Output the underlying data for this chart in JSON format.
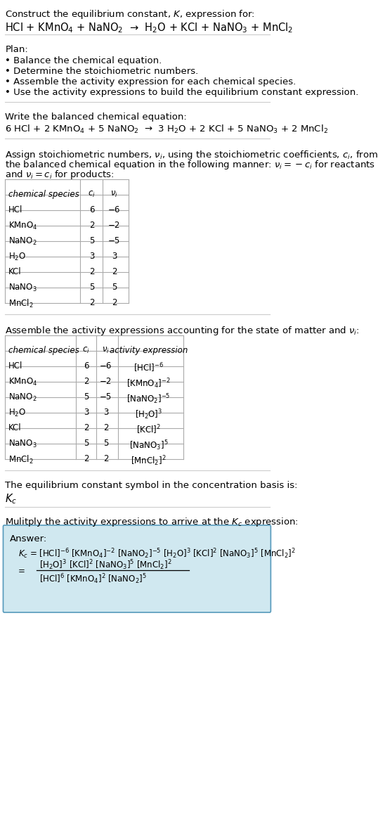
{
  "title_line1": "Construct the equilibrium constant, $K$, expression for:",
  "title_line2": "HCl + KMnO$_4$ + NaNO$_2$  →  H$_2$O + KCl + NaNO$_3$ + MnCl$_2$",
  "plan_header": "Plan:",
  "plan_items": [
    "• Balance the chemical equation.",
    "• Determine the stoichiometric numbers.",
    "• Assemble the activity expression for each chemical species.",
    "• Use the activity expressions to build the equilibrium constant expression."
  ],
  "balanced_header": "Write the balanced chemical equation:",
  "balanced_eq": "6 HCl + 2 KMnO$_4$ + 5 NaNO$_2$  →  3 H$_2$O + 2 KCl + 5 NaNO$_3$ + 2 MnCl$_2$",
  "stoich_header": "Assign stoichiometric numbers, $\\nu_i$, using the stoichiometric coefficients, $c_i$, from the balanced chemical equation in the following manner: $\\nu_i = -c_i$ for reactants and $\\nu_i = c_i$ for products:",
  "table1_cols": [
    "chemical species",
    "$c_i$",
    "$\\nu_i$"
  ],
  "table1_data": [
    [
      "HCl",
      "6",
      "−6"
    ],
    [
      "KMnO$_4$",
      "2",
      "−2"
    ],
    [
      "NaNO$_2$",
      "5",
      "−5"
    ],
    [
      "H$_2$O",
      "3",
      "3"
    ],
    [
      "KCl",
      "2",
      "2"
    ],
    [
      "NaNO$_3$",
      "5",
      "5"
    ],
    [
      "MnCl$_2$",
      "2",
      "2"
    ]
  ],
  "activity_header": "Assemble the activity expressions accounting for the state of matter and $\\nu_i$:",
  "table2_cols": [
    "chemical species",
    "$c_i$",
    "$\\nu_i$",
    "activity expression"
  ],
  "table2_data": [
    [
      "HCl",
      "6",
      "−6",
      "[HCl]$^{-6}$"
    ],
    [
      "KMnO$_4$",
      "2",
      "−2",
      "[KMnO$_4$]$^{-2}$"
    ],
    [
      "NaNO$_2$",
      "5",
      "−5",
      "[NaNO$_2$]$^{-5}$"
    ],
    [
      "H$_2$O",
      "3",
      "3",
      "[H$_2$O]$^3$"
    ],
    [
      "KCl",
      "2",
      "2",
      "[KCl]$^2$"
    ],
    [
      "NaNO$_3$",
      "5",
      "5",
      "[NaNO$_3$]$^5$"
    ],
    [
      "MnCl$_2$",
      "2",
      "2",
      "[MnCl$_2$]$^2$"
    ]
  ],
  "kc_header": "The equilibrium constant symbol in the concentration basis is:",
  "kc_symbol": "$K_c$",
  "multiply_header": "Mulitply the activity expressions to arrive at the $K_c$ expression:",
  "answer_label": "Answer:",
  "answer_line1": "$K_c$ = [HCl]$^{-6}$ [KMnO$_4$]$^{-2}$ [NaNO$_2$]$^{-5}$ [H$_2$O]$^3$ [KCl]$^2$ [NaNO$_3$]$^5$ [MnCl$_2$]$^2$",
  "answer_line2": "     [H$_2$O]$^3$ [KCl]$^2$ [NaNO$_3$]$^5$ [MnCl$_2$]$^2$",
  "answer_line3": "= ─────────────────────────────────────",
  "answer_line4": "          [HCl]$^6$ [KMnO$_4$]$^2$ [NaNO$_2$]$^5$",
  "bg_color": "#ffffff",
  "text_color": "#000000",
  "table_border_color": "#aaaaaa",
  "answer_box_color": "#d0e8f0",
  "answer_box_border": "#5599bb",
  "font_size": 9.5,
  "small_font": 8.5
}
